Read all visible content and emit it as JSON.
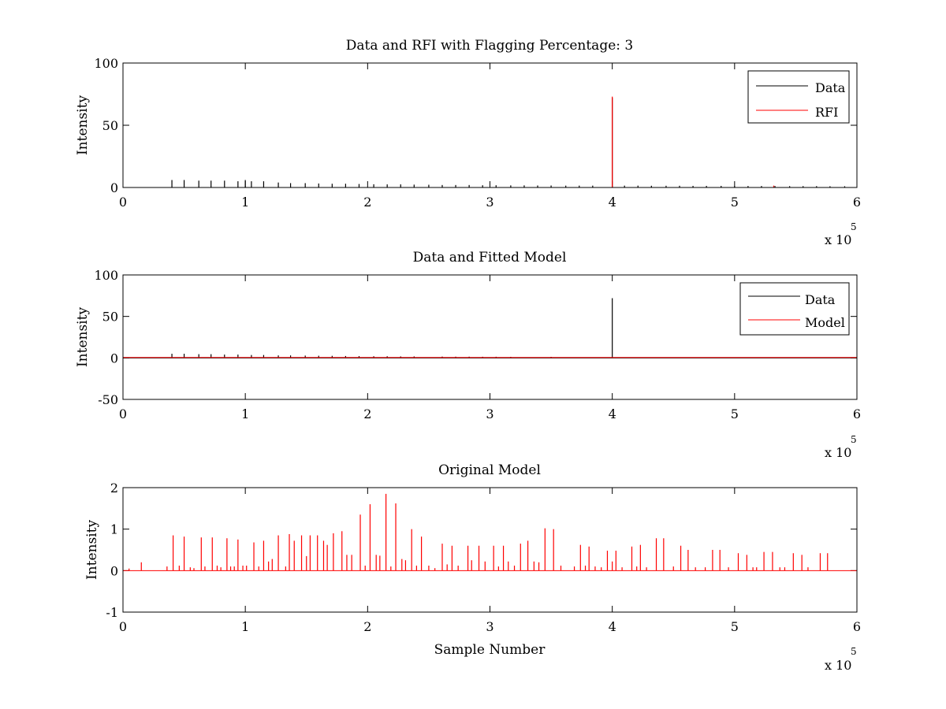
{
  "figure": {
    "background": "#ffffff"
  },
  "chart_data": [
    {
      "type": "line",
      "title": "Data and RFI with Flagging Percentage: 3",
      "xlabel": "",
      "ylabel": "Intensity",
      "xlim": [
        0,
        600000
      ],
      "ylim": [
        0,
        100
      ],
      "xticks": [
        0,
        1,
        2,
        3,
        4,
        5,
        6
      ],
      "yticks": [
        0,
        50,
        100
      ],
      "x_multiplier": "x 10",
      "x_multiplier_exponent": "5",
      "grid": false,
      "legend": {
        "placement": "top-right",
        "entries": [
          "Data",
          "RFI"
        ]
      },
      "series": [
        {
          "name": "Data",
          "color": "#000000",
          "spikes": [
            [
              40000,
              6.0
            ],
            [
              50000,
              6.0
            ],
            [
              62000,
              5.5
            ],
            [
              72000,
              5.5
            ],
            [
              83000,
              5.5
            ],
            [
              94000,
              5.0
            ],
            [
              100000,
              6.0
            ],
            [
              105000,
              5.0
            ],
            [
              115000,
              5.0
            ],
            [
              127000,
              4.0
            ],
            [
              137000,
              3.5
            ],
            [
              149000,
              3.5
            ],
            [
              160000,
              3.2
            ],
            [
              171000,
              3.0
            ],
            [
              182000,
              3.0
            ],
            [
              193000,
              2.8
            ],
            [
              205000,
              2.6
            ],
            [
              216000,
              2.5
            ],
            [
              227000,
              2.5
            ],
            [
              238000,
              2.3
            ],
            [
              250000,
              2.2
            ],
            [
              261000,
              2.0
            ],
            [
              272000,
              2.0
            ],
            [
              283000,
              2.0
            ],
            [
              294000,
              1.8
            ],
            [
              305000,
              1.8
            ],
            [
              317000,
              1.7
            ],
            [
              328000,
              1.7
            ],
            [
              339000,
              1.6
            ],
            [
              350000,
              1.6
            ],
            [
              362000,
              1.5
            ],
            [
              373000,
              1.5
            ],
            [
              384000,
              1.5
            ],
            [
              400000,
              72.0
            ],
            [
              410000,
              1.5
            ],
            [
              421000,
              1.5
            ],
            [
              432000,
              1.4
            ],
            [
              444000,
              1.4
            ],
            [
              455000,
              1.4
            ],
            [
              466000,
              1.3
            ],
            [
              477000,
              1.3
            ],
            [
              489000,
              1.3
            ],
            [
              500000,
              1.2
            ],
            [
              511000,
              1.2
            ],
            [
              522000,
              1.2
            ],
            [
              533000,
              1.2
            ],
            [
              545000,
              1.1
            ],
            [
              556000,
              1.1
            ],
            [
              567000,
              1.1
            ],
            [
              578000,
              1.0
            ],
            [
              590000,
              1.0
            ]
          ]
        },
        {
          "name": "RFI",
          "color": "#ff0000",
          "spikes": [
            [
              400000,
              73.0
            ],
            [
              532000,
              1.5
            ]
          ]
        }
      ]
    },
    {
      "type": "line",
      "title": "Data and Fitted Model",
      "xlabel": "",
      "ylabel": "Intensity",
      "xlim": [
        0,
        600000
      ],
      "ylim": [
        -50,
        100
      ],
      "xticks": [
        0,
        1,
        2,
        3,
        4,
        5,
        6
      ],
      "yticks": [
        -50,
        0,
        50,
        100
      ],
      "x_multiplier": "x 10",
      "x_multiplier_exponent": "5",
      "grid": false,
      "legend": {
        "placement": "top-right",
        "entries": [
          "Data",
          "Model"
        ]
      },
      "series": [
        {
          "name": "Data",
          "color": "#000000",
          "spikes": [
            [
              40000,
              5.0
            ],
            [
              50000,
              5.0
            ],
            [
              62000,
              4.5
            ],
            [
              72000,
              4.5
            ],
            [
              83000,
              4.0
            ],
            [
              94000,
              4.0
            ],
            [
              105000,
              3.5
            ],
            [
              115000,
              3.5
            ],
            [
              127000,
              3.0
            ],
            [
              137000,
              3.0
            ],
            [
              149000,
              2.8
            ],
            [
              160000,
              2.6
            ],
            [
              171000,
              2.5
            ],
            [
              182000,
              2.3
            ],
            [
              193000,
              2.2
            ],
            [
              205000,
              2.0
            ],
            [
              216000,
              2.0
            ],
            [
              227000,
              1.8
            ],
            [
              238000,
              1.8
            ],
            [
              261000,
              1.6
            ],
            [
              272000,
              1.5
            ],
            [
              283000,
              1.5
            ],
            [
              294000,
              1.4
            ],
            [
              305000,
              1.4
            ],
            [
              317000,
              1.3
            ],
            [
              350000,
              1.3
            ],
            [
              400000,
              72.0
            ]
          ]
        },
        {
          "name": "Model",
          "color": "#ff0000",
          "baseline": 0.5
        }
      ]
    },
    {
      "type": "line",
      "title": "Original Model",
      "xlabel": "Sample Number",
      "ylabel": "Intensity",
      "xlim": [
        0,
        600000
      ],
      "ylim": [
        -1,
        2
      ],
      "xticks": [
        0,
        1,
        2,
        3,
        4,
        5,
        6
      ],
      "yticks": [
        -1,
        0,
        1,
        2
      ],
      "x_multiplier": "x 10",
      "x_multiplier_exponent": "5",
      "grid": false,
      "series": [
        {
          "color": "#ff0000",
          "spikes": [
            [
              5000,
              0.05
            ],
            [
              15000,
              0.2
            ],
            [
              36000,
              0.1
            ],
            [
              41000,
              0.85
            ],
            [
              46000,
              0.12
            ],
            [
              50000,
              0.82
            ],
            [
              55000,
              0.08
            ],
            [
              58000,
              0.06
            ],
            [
              64000,
              0.8
            ],
            [
              67000,
              0.1
            ],
            [
              73000,
              0.8
            ],
            [
              77000,
              0.12
            ],
            [
              80000,
              0.08
            ],
            [
              85000,
              0.78
            ],
            [
              88000,
              0.1
            ],
            [
              91000,
              0.1
            ],
            [
              94000,
              0.75
            ],
            [
              98000,
              0.12
            ],
            [
              101000,
              0.12
            ],
            [
              107000,
              0.68
            ],
            [
              111000,
              0.1
            ],
            [
              115000,
              0.72
            ],
            [
              119000,
              0.22
            ],
            [
              122000,
              0.28
            ],
            [
              127000,
              0.85
            ],
            [
              133000,
              0.1
            ],
            [
              136000,
              0.88
            ],
            [
              140000,
              0.72
            ],
            [
              146000,
              0.85
            ],
            [
              150000,
              0.35
            ],
            [
              153000,
              0.85
            ],
            [
              159000,
              0.85
            ],
            [
              164000,
              0.72
            ],
            [
              167000,
              0.62
            ],
            [
              172000,
              0.9
            ],
            [
              179000,
              0.95
            ],
            [
              183000,
              0.38
            ],
            [
              187000,
              0.38
            ],
            [
              194000,
              1.35
            ],
            [
              198000,
              0.12
            ],
            [
              202000,
              1.6
            ],
            [
              207000,
              0.38
            ],
            [
              210000,
              0.36
            ],
            [
              215000,
              1.85
            ],
            [
              219000,
              0.1
            ],
            [
              223000,
              1.62
            ],
            [
              228000,
              0.28
            ],
            [
              231000,
              0.25
            ],
            [
              236000,
              1.0
            ],
            [
              240000,
              0.12
            ],
            [
              244000,
              0.82
            ],
            [
              250000,
              0.12
            ],
            [
              255000,
              0.06
            ],
            [
              261000,
              0.65
            ],
            [
              265000,
              0.15
            ],
            [
              269000,
              0.6
            ],
            [
              274000,
              0.12
            ],
            [
              282000,
              0.6
            ],
            [
              285000,
              0.25
            ],
            [
              291000,
              0.6
            ],
            [
              296000,
              0.22
            ],
            [
              303000,
              0.6
            ],
            [
              307000,
              0.1
            ],
            [
              311000,
              0.6
            ],
            [
              315000,
              0.22
            ],
            [
              320000,
              0.12
            ],
            [
              325000,
              0.65
            ],
            [
              331000,
              0.72
            ],
            [
              336000,
              0.22
            ],
            [
              340000,
              0.2
            ],
            [
              345000,
              1.02
            ],
            [
              352000,
              1.0
            ],
            [
              358000,
              0.12
            ],
            [
              369000,
              0.1
            ],
            [
              374000,
              0.62
            ],
            [
              378000,
              0.12
            ],
            [
              381000,
              0.58
            ],
            [
              386000,
              0.1
            ],
            [
              391000,
              0.08
            ],
            [
              396000,
              0.48
            ],
            [
              400000,
              0.22
            ],
            [
              403000,
              0.48
            ],
            [
              408000,
              0.08
            ],
            [
              416000,
              0.58
            ],
            [
              420000,
              0.1
            ],
            [
              423000,
              0.62
            ],
            [
              428000,
              0.08
            ],
            [
              436000,
              0.78
            ],
            [
              442000,
              0.78
            ],
            [
              450000,
              0.1
            ],
            [
              456000,
              0.6
            ],
            [
              462000,
              0.5
            ],
            [
              468000,
              0.08
            ],
            [
              476000,
              0.08
            ],
            [
              482000,
              0.5
            ],
            [
              488000,
              0.5
            ],
            [
              495000,
              0.08
            ],
            [
              503000,
              0.42
            ],
            [
              510000,
              0.38
            ],
            [
              515000,
              0.08
            ],
            [
              518000,
              0.08
            ],
            [
              524000,
              0.45
            ],
            [
              531000,
              0.45
            ],
            [
              537000,
              0.08
            ],
            [
              541000,
              0.08
            ],
            [
              548000,
              0.42
            ],
            [
              555000,
              0.38
            ],
            [
              560000,
              0.08
            ],
            [
              570000,
              0.42
            ],
            [
              576000,
              0.42
            ]
          ]
        }
      ]
    }
  ]
}
